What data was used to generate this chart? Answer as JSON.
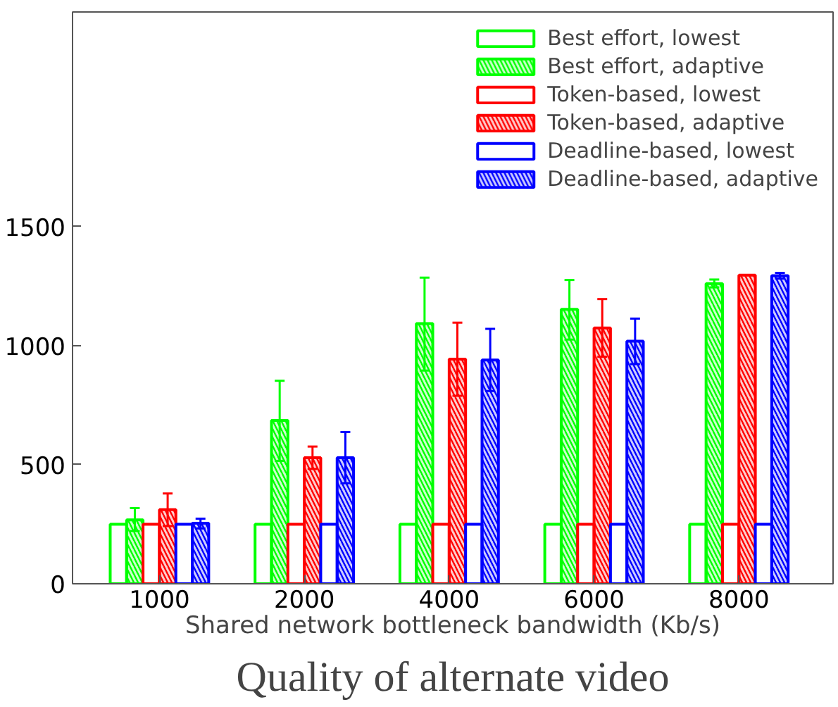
{
  "chart_data": {
    "type": "bar",
    "title": "Quality of alternate video",
    "xlabel": "Shared network bottleneck bandwidth (Kb/s)",
    "categories": [
      "1000",
      "2000",
      "4000",
      "6000",
      "8000"
    ],
    "ylim": [
      0,
      2400
    ],
    "yticks": [
      0,
      500,
      1000,
      1500
    ],
    "grid": false,
    "legend": "top right",
    "series": [
      {
        "name": "Best effort, lowest",
        "color": "#00ff00",
        "values": [
          250,
          250,
          250,
          250,
          250
        ]
      },
      {
        "name": "Best effort, adaptive",
        "color": "#00ff00",
        "values": [
          268,
          686,
          1092,
          1152,
          1260
        ],
        "errors": [
          [
            221,
            318
          ],
          [
            516,
            852
          ],
          [
            895,
            1285
          ],
          [
            1025,
            1275
          ],
          [
            1244,
            1277
          ]
        ]
      },
      {
        "name": "Token-based, lowest",
        "color": "#ff0000",
        "values": [
          250,
          250,
          250,
          250,
          250
        ]
      },
      {
        "name": "Token-based, adaptive",
        "color": "#ff0000",
        "values": [
          311,
          529,
          943,
          1074,
          1295
        ],
        "errors": [
          [
            242,
            379
          ],
          [
            482,
            576
          ],
          [
            789,
            1096
          ],
          [
            953,
            1195
          ],
          null
        ]
      },
      {
        "name": "Deadline-based, lowest",
        "color": "#0000ff",
        "values": [
          250,
          250,
          250,
          250,
          250
        ]
      },
      {
        "name": "Deadline-based, adaptive",
        "color": "#0000ff",
        "values": [
          254,
          529,
          939,
          1018,
          1293
        ],
        "errors": [
          [
            232,
            273
          ],
          [
            422,
            637
          ],
          [
            809,
            1070
          ],
          [
            922,
            1113
          ],
          [
            1281,
            1305
          ]
        ]
      }
    ]
  }
}
